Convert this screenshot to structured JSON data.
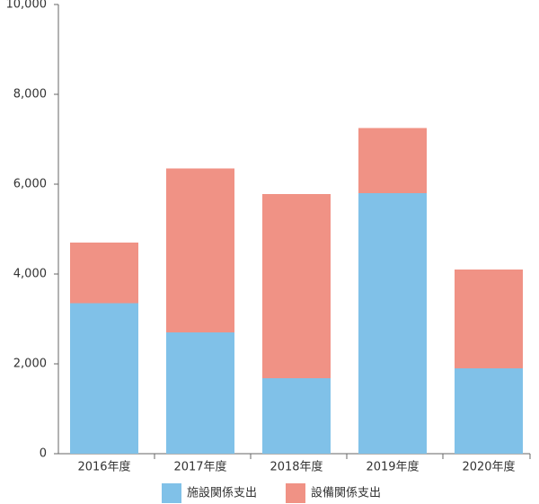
{
  "chart_data": {
    "type": "stacked_bar",
    "categories": [
      "2016年度",
      "2017年度",
      "2018年度",
      "2019年度",
      "2020年度"
    ],
    "series": [
      {
        "name": "施設関係支出",
        "color": "#80c1e8",
        "values": [
          3350,
          2700,
          1680,
          5800,
          1900
        ]
      },
      {
        "name": "設備関係支出",
        "color": "#f09285",
        "values": [
          1350,
          3650,
          4100,
          1450,
          2200
        ]
      }
    ],
    "ylim": [
      0,
      10000
    ],
    "yticks": [
      0,
      {
        "value": 2000,
        "label": "2,000"
      },
      {
        "value": 4000,
        "label": "4,000"
      },
      {
        "value": 6000,
        "label": "6,000"
      },
      {
        "value": 8000,
        "label": "8,000"
      },
      {
        "value": 10000,
        "label": "10,000"
      }
    ],
    "grid": false
  }
}
